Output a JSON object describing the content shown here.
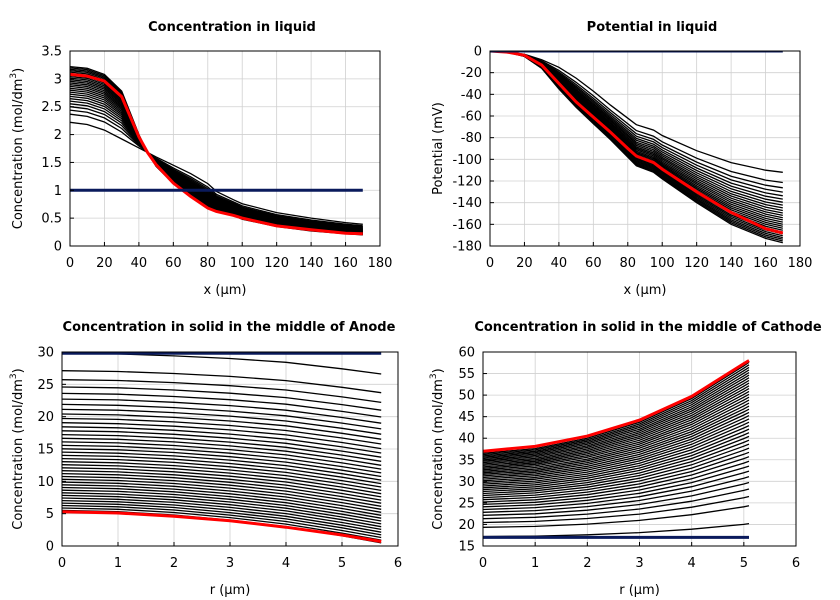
{
  "colors": {
    "curve": "#000000",
    "initial": "#0a1a5c",
    "highlight": "#ff0000",
    "grid": "#d0d0d0",
    "background": "#ffffff"
  },
  "chart_data": [
    {
      "type": "line",
      "title": "Concentration in liquid",
      "xlabel": "x (µm)",
      "ylabel": "Concentration (mol/dm",
      "ylabel_sup": "3",
      "ylabel_end": ")",
      "xlim": [
        0,
        180
      ],
      "ylim": [
        0,
        3.5
      ],
      "xticks": [
        0,
        20,
        40,
        60,
        80,
        100,
        120,
        140,
        160,
        180
      ],
      "yticks": [
        0,
        0.5,
        1,
        1.5,
        2,
        2.5,
        3,
        3.5
      ],
      "ytick_labels": [
        "0",
        "0.5",
        "1",
        "1.5",
        "2",
        "2.5",
        "3",
        "3.5"
      ],
      "grid": true,
      "family": {
        "x": [
          0,
          10,
          20,
          30,
          40,
          45,
          50,
          60,
          70,
          80,
          85,
          95,
          100,
          120,
          140,
          160,
          170
        ],
        "count": 26,
        "first": [
          2.22,
          2.18,
          2.08,
          1.92,
          1.76,
          1.68,
          1.6,
          1.45,
          1.3,
          1.12,
          0.98,
          0.83,
          0.76,
          0.6,
          0.5,
          0.42,
          0.39
        ],
        "last": [
          3.22,
          3.19,
          3.08,
          2.78,
          2.0,
          1.68,
          1.43,
          1.12,
          0.9,
          0.7,
          0.62,
          0.55,
          0.48,
          0.35,
          0.27,
          0.22,
          0.2
        ]
      },
      "series": [
        {
          "values": [
            3.08,
            3.05,
            2.96,
            2.68,
            1.96,
            1.68,
            1.46,
            1.13,
            0.89,
            0.68,
            0.62,
            0.55,
            0.5,
            0.36,
            0.29,
            0.23,
            0.22
          ],
          "color": "#ff0000"
        },
        {
          "values": [
            1.0,
            1.0,
            1.0,
            1.0,
            1.0,
            1.0,
            1.0,
            1.0,
            1.0,
            1.0,
            1.0,
            1.0,
            1.0,
            1.0,
            1.0,
            1.0,
            1.0
          ],
          "color": "#0a1a5c"
        }
      ]
    },
    {
      "type": "line",
      "title": "Potential in liquid",
      "xlabel": "x (µm)",
      "ylabel": "Potential (mV)",
      "xlim": [
        0,
        180
      ],
      "ylim": [
        -180,
        0
      ],
      "xticks": [
        0,
        20,
        40,
        60,
        80,
        100,
        120,
        140,
        160,
        180
      ],
      "yticks": [
        0,
        -20,
        -40,
        -60,
        -80,
        -100,
        -120,
        -140,
        -160,
        -180
      ],
      "ytick_labels": [
        "0",
        "-20",
        "-40",
        "-60",
        "-80",
        "-100",
        "-120",
        "-140",
        "-160",
        "-180"
      ],
      "grid": true,
      "family": {
        "x": [
          0,
          10,
          20,
          30,
          40,
          50,
          60,
          70,
          80,
          85,
          95,
          100,
          120,
          140,
          160,
          170
        ],
        "count": 26,
        "first": [
          0,
          -1,
          -3,
          -8,
          -15,
          -25,
          -37,
          -50,
          -62,
          -68,
          -73,
          -78,
          -92,
          -103,
          -110,
          -112
        ],
        "last": [
          0,
          -1,
          -5,
          -16,
          -35,
          -52,
          -67,
          -82,
          -98,
          -106,
          -112,
          -118,
          -140,
          -160,
          -173,
          -177
        ]
      },
      "series": [
        {
          "values": [
            0,
            -1,
            -4,
            -13,
            -30,
            -47,
            -61,
            -75,
            -90,
            -97,
            -103,
            -109,
            -130,
            -149,
            -164,
            -168
          ],
          "color": "#ff0000"
        },
        {
          "values": [
            0,
            0,
            0,
            0,
            0,
            0,
            0,
            0,
            0,
            0,
            0,
            0,
            0,
            0,
            0,
            0
          ],
          "color": "#0a1a5c"
        }
      ]
    },
    {
      "type": "line",
      "title": "Concentration in solid in the middle of Anode",
      "xlabel": "r (µm)",
      "ylabel": "Concentration (mol/dm",
      "ylabel_sup": "3",
      "ylabel_end": ")",
      "xlim": [
        0,
        6
      ],
      "ylim": [
        0,
        30
      ],
      "xticks": [
        0,
        1,
        2,
        3,
        4,
        5,
        6
      ],
      "yticks": [
        0,
        5,
        10,
        15,
        20,
        25,
        30
      ],
      "ytick_labels": [
        "0",
        "5",
        "10",
        "15",
        "20",
        "25",
        "30"
      ],
      "grid": true,
      "family": {
        "x": [
          0,
          1,
          2,
          3,
          4,
          5,
          5.7
        ],
        "count": 40,
        "first": [
          29.8,
          29.7,
          29.4,
          29.0,
          28.4,
          27.4,
          26.6
        ],
        "last": [
          5.5,
          5.3,
          4.8,
          4.0,
          3.0,
          1.6,
          0.5
        ]
      },
      "series": [
        {
          "values": [
            5.3,
            5.1,
            4.6,
            3.9,
            2.9,
            1.7,
            0.7
          ],
          "color": "#ff0000"
        },
        {
          "values": [
            29.8,
            29.8,
            29.8,
            29.8,
            29.8,
            29.8,
            29.8
          ],
          "color": "#0a1a5c"
        }
      ]
    },
    {
      "type": "line",
      "title": "Concentration in solid in the middle of Cathode",
      "xlabel": "r (µm)",
      "ylabel": "Concentration (mol/dm",
      "ylabel_sup": "3",
      "ylabel_end": ")",
      "xlim": [
        0,
        6
      ],
      "ylim": [
        15,
        60
      ],
      "xticks": [
        0,
        1,
        2,
        3,
        4,
        5,
        6
      ],
      "yticks": [
        15,
        20,
        25,
        30,
        35,
        40,
        45,
        50,
        55,
        60
      ],
      "ytick_labels": [
        "15",
        "20",
        "25",
        "30",
        "35",
        "40",
        "45",
        "50",
        "55",
        "60"
      ],
      "grid": true,
      "family": {
        "x": [
          0,
          1,
          2,
          3,
          4,
          5,
          5.1
        ],
        "count": 40,
        "first": [
          17.2,
          17.3,
          17.6,
          18.1,
          18.9,
          20.0,
          20.2
        ],
        "last": [
          36.5,
          37.6,
          40.0,
          43.7,
          49.2,
          56.8,
          57.6
        ]
      },
      "series": [
        {
          "values": [
            37.0,
            38.1,
            40.5,
            44.2,
            49.7,
            57.3,
            58.0
          ],
          "color": "#ff0000"
        },
        {
          "values": [
            17.0,
            17.0,
            17.0,
            17.0,
            17.0,
            17.0,
            17.0
          ],
          "color": "#0a1a5c"
        }
      ]
    }
  ]
}
